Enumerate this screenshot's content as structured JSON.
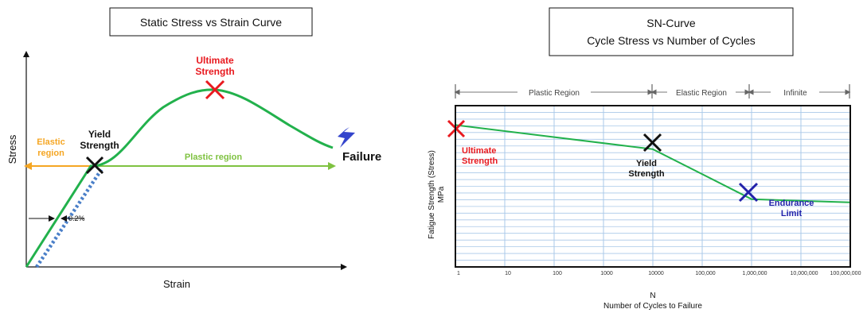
{
  "colors": {
    "curve": "#22b14c",
    "plastic_arrow": "#7fc241",
    "elastic_arrow": "#f5a623",
    "ultimate": "#e8191f",
    "endurance": "#2222aa",
    "dotted": "#4a7fc8",
    "grid": "#a9c8e8",
    "bolt": "#3344cc",
    "ink": "#111111"
  },
  "chart_data": [
    {
      "type": "line",
      "title": "Static Stress vs Strain Curve",
      "xlabel": "Strain",
      "ylabel": "Stress",
      "grid": false,
      "series": [
        {
          "x": [
            0,
            0.12,
            0.3,
            0.5,
            0.7,
            0.9
          ],
          "y": [
            0,
            0.55,
            0.58,
            1.0,
            0.85,
            0.67
          ]
        }
      ],
      "points": {
        "yield": {
          "label_line1": "Yield",
          "label_line2": "Strength",
          "x": 0.12,
          "y": 0.55
        },
        "ultimate": {
          "label_line1": "Ultimate",
          "label_line2": "Strength",
          "x": 0.5,
          "y": 1.0
        },
        "failure": {
          "label": "Failure",
          "x": 0.9,
          "y": 0.67
        }
      },
      "annotations": {
        "elastic_region_line1": "Elastic",
        "elastic_region_line2": "region",
        "plastic_region": "Plastic region",
        "offset": "0.2%"
      }
    },
    {
      "type": "line",
      "title_line1": "SN-Curve",
      "title_line2": "Cycle Stress vs Number of Cycles",
      "xlabel_line1": "N",
      "xlabel_line2": "Number of Cycles to Failure",
      "ylabel_line1": "Fatigue Strength (Stress)",
      "ylabel_line2": "MPa",
      "x_scale": "log",
      "grid": true,
      "x_ticks": [
        "1",
        "10",
        "100",
        "1000",
        "10000",
        "100,000",
        "1,000,000",
        "10,000,000",
        "100,000,000"
      ],
      "series": [
        {
          "x": [
            1,
            10000,
            1000000,
            100000000
          ],
          "y": [
            0.88,
            0.73,
            0.42,
            0.4
          ]
        }
      ],
      "points": {
        "ultimate": {
          "label_line1": "Ultimate",
          "label_line2": "Strength",
          "x": 1,
          "y": 0.88
        },
        "yield": {
          "label_line1": "Yield",
          "label_line2": "Strength",
          "x": 10000,
          "y": 0.73
        },
        "endurance": {
          "label_line1": "Endurance",
          "label_line2": "Limit",
          "x": 1000000,
          "y": 0.42
        }
      },
      "regions": [
        {
          "label": "Plastic Region",
          "from": 1,
          "to": 10000
        },
        {
          "label": "Elastic Region",
          "from": 10000,
          "to": 1000000
        },
        {
          "label": "Infinite",
          "from": 1000000,
          "to": 100000000
        }
      ]
    }
  ]
}
